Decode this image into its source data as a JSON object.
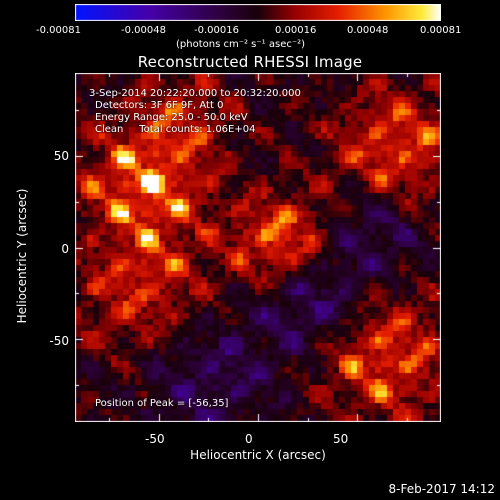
{
  "colorbar": {
    "ticks": [
      "-0.00081",
      "-0.00048",
      "-0.00016",
      "0.00016",
      "0.00048",
      "0.00081"
    ],
    "unit_label": "(photons cm⁻² s⁻¹ asec⁻²)",
    "range": [
      -0.00081,
      0.00081
    ]
  },
  "annotations": {
    "time_range": "3-Sep-2014 20:22:20.000 to 20:32:20.000",
    "detectors": "Detectors: 3F 6F 9F, Att 0",
    "energy": "Energy Range: 25.0 - 50.0 keV",
    "clean": "Clean     Total counts: 1.06E+04",
    "peak": "Position of Peak = [-56,35]"
  },
  "timestamp": "8-Feb-2017 14:12",
  "chart_data": {
    "type": "heatmap",
    "title": "Reconstructed RHESSI Image",
    "xlabel": "Heliocentric X (arcsec)",
    "ylabel": "Heliocentric Y (arcsec)",
    "xlim": [
      -92,
      92
    ],
    "ylim": [
      -95,
      95
    ],
    "x_ticks": [
      "-50",
      "0",
      "50"
    ],
    "y_ticks": [
      "50",
      "0",
      "-50"
    ],
    "x_tick_values": [
      -50,
      0,
      50
    ],
    "y_tick_values": [
      50,
      0,
      -50
    ],
    "peak_position": [
      -56,
      35
    ],
    "colormap": "RHESSI red-temperature (blue negative, red/yellow/white positive)"
  }
}
